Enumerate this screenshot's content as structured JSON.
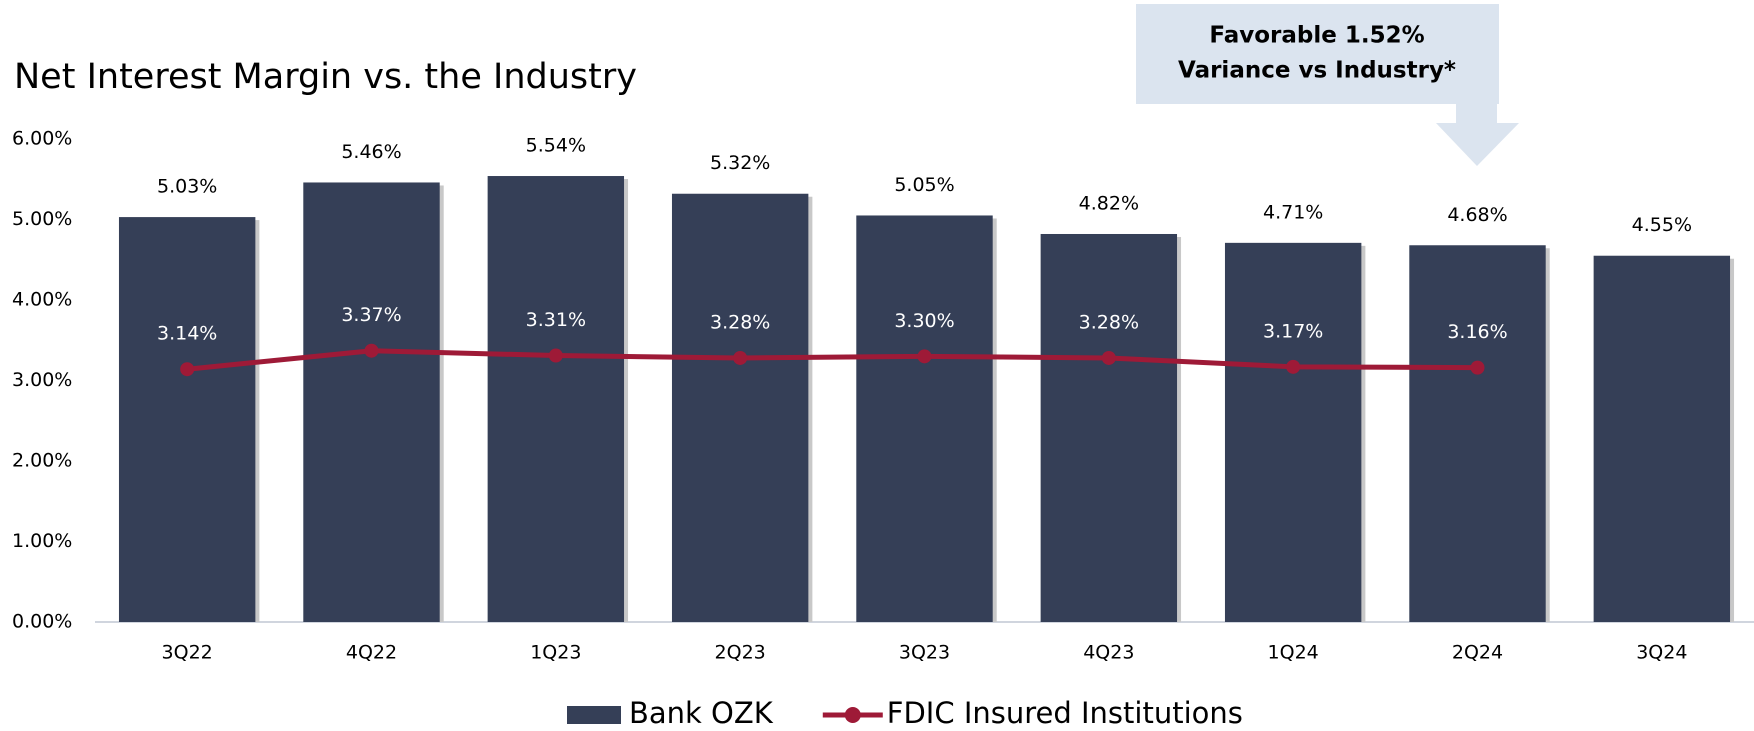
{
  "chart_data": {
    "type": "bar",
    "title": "Net Interest Margin vs. the Industry",
    "annotation": [
      "Favorable 1.52%",
      "Variance vs Industry*"
    ],
    "categories": [
      "3Q22",
      "4Q22",
      "1Q23",
      "2Q23",
      "3Q23",
      "4Q23",
      "1Q24",
      "2Q24",
      "3Q24"
    ],
    "series": [
      {
        "name": "Bank OZK",
        "type": "bar",
        "color": "#353f57",
        "values": [
          5.03,
          5.46,
          5.54,
          5.32,
          5.05,
          4.82,
          4.71,
          4.68,
          4.55
        ],
        "value_labels": [
          "5.03%",
          "5.46%",
          "5.54%",
          "5.32%",
          "5.05%",
          "4.82%",
          "4.71%",
          "4.68%",
          "4.55%"
        ]
      },
      {
        "name": "FDIC Insured Institutions",
        "type": "line",
        "color": "#9e1a37",
        "values": [
          3.14,
          3.37,
          3.31,
          3.28,
          3.3,
          3.28,
          3.17,
          3.16,
          null
        ],
        "value_labels": [
          "3.14%",
          "3.37%",
          "3.31%",
          "3.28%",
          "3.30%",
          "3.28%",
          "3.17%",
          "3.16%",
          null
        ]
      }
    ],
    "ylim": [
      0,
      6
    ],
    "yticks": [
      {
        "value": 0,
        "label": "0.00%"
      },
      {
        "value": 1,
        "label": "1.00%"
      },
      {
        "value": 2,
        "label": "2.00%"
      },
      {
        "value": 3,
        "label": "3.00%"
      },
      {
        "value": 4,
        "label": "4.00%"
      },
      {
        "value": 5,
        "label": "5.00%"
      },
      {
        "value": 6,
        "label": "6.00%"
      }
    ],
    "grid": false
  }
}
